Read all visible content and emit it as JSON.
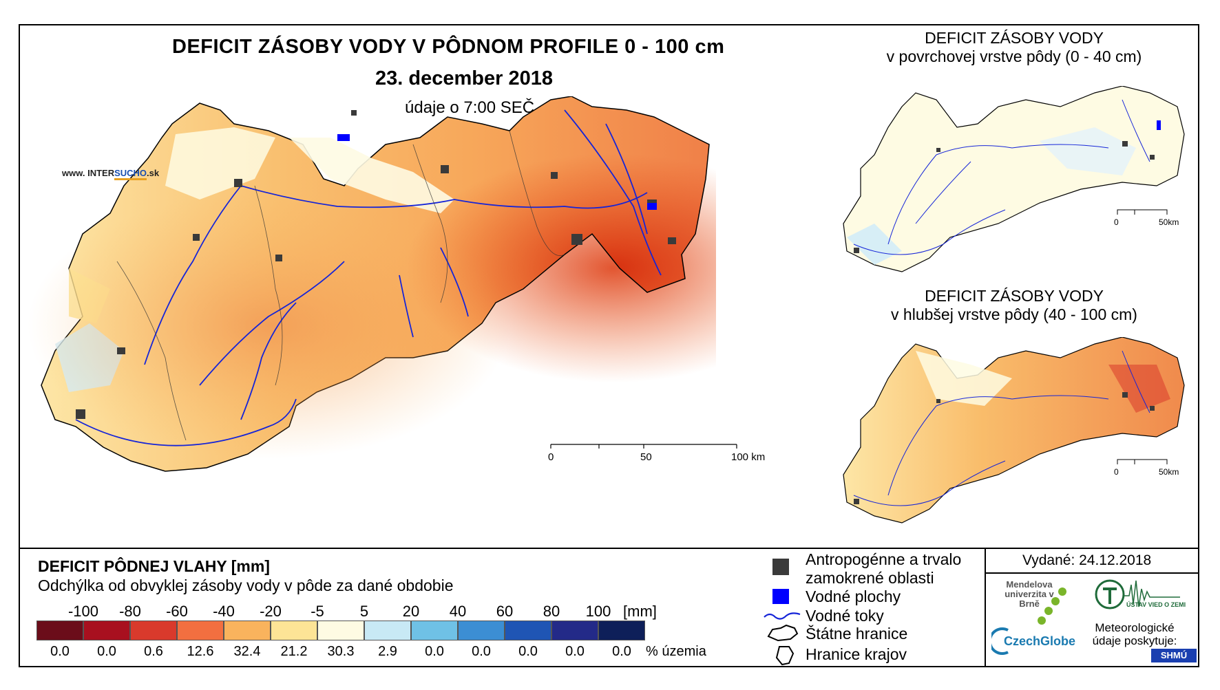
{
  "title": {
    "main": "DEFICIT ZÁSOBY VODY V PÔDNOM PROFILE 0 - 100 cm",
    "date": "23. december 2018",
    "time": "údaje o 7:00 SEČ"
  },
  "brand": {
    "prefix": "www. INTER",
    "highlight": "SUCHO",
    "suffix": ".sk"
  },
  "inset_top": {
    "title": "DEFICIT ZÁSOBY VODY",
    "subtitle": "v povrchovej vrstve pôdy (0 - 40 cm)",
    "scale_labels": [
      "0",
      "50km"
    ]
  },
  "inset_bottom": {
    "title": "DEFICIT ZÁSOBY VODY",
    "subtitle": "v hlubšej vrstve pôdy (40 - 100 cm)",
    "scale_labels": [
      "0",
      "50km"
    ]
  },
  "main_scale": {
    "labels": [
      "0",
      "50",
      "100 km"
    ]
  },
  "legend": {
    "title": "DEFICIT PÔDNEJ VLAHY [mm]",
    "subtitle": "Odchýlka od obvyklej zásoby vody v pôde za dané obdobie",
    "boundaries": [
      "-100",
      "-80",
      "-60",
      "-40",
      "-20",
      "-5",
      "5",
      "20",
      "40",
      "60",
      "80",
      "100"
    ],
    "unit": "[mm]",
    "classes": [
      {
        "color": "#6b0d1a",
        "percent": "0.0"
      },
      {
        "color": "#a8101f",
        "percent": "0.0"
      },
      {
        "color": "#d93a2c",
        "percent": "0.6"
      },
      {
        "color": "#f26f40",
        "percent": "12.6"
      },
      {
        "color": "#f9b35d",
        "percent": "32.4"
      },
      {
        "color": "#fde496",
        "percent": "21.2"
      },
      {
        "color": "#fefbe3",
        "percent": "30.3"
      },
      {
        "color": "#c8e9f5",
        "percent": "2.9"
      },
      {
        "color": "#6fc1e6",
        "percent": "0.0"
      },
      {
        "color": "#3c8ed3",
        "percent": "0.0"
      },
      {
        "color": "#1f55b4",
        "percent": "0.0"
      },
      {
        "color": "#232a88",
        "percent": "0.0"
      },
      {
        "color": "#0e1f59",
        "percent": "0.0"
      }
    ],
    "percent_unit": "% územia"
  },
  "symbols": {
    "urban": "Antropogénne a trvalo zamokrené oblasti",
    "water_bodies": "Vodné plochy",
    "rivers": "Vodné toky",
    "state_border": "Štátne hranice",
    "region_border": "Hranice krajov"
  },
  "issued": "Vydané: 24.12.2018",
  "logos": {
    "mendel": "Mendelova univerzita v Brně",
    "czechglobe": "CzechGlobe",
    "uvz": "ÚSTAV VIED O ZEMI",
    "meteo": "Meteorologické údaje poskytuje:",
    "shmu": "SHMÚ"
  },
  "colors": {
    "river": "#1524d8",
    "urban": "#3a3a3a",
    "water": "#0000ff",
    "border": "#000000"
  }
}
